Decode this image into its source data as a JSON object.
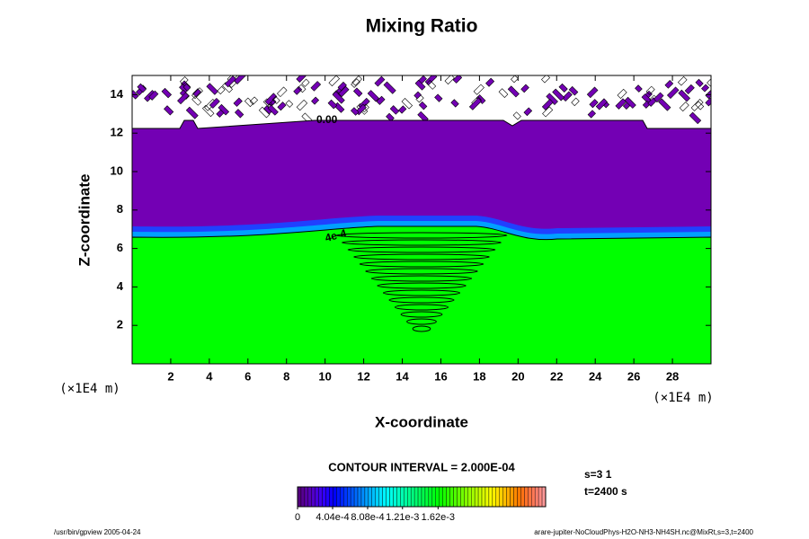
{
  "chart_data": {
    "type": "contour",
    "title": "Mixing Ratio",
    "xlabel": "X-coordinate",
    "ylabel": "Z-coordinate",
    "x_unit": "(×1E4 m)",
    "xlim": [
      0,
      30
    ],
    "ylim": [
      0,
      15
    ],
    "xticks": [
      2,
      4,
      6,
      8,
      10,
      12,
      14,
      16,
      18,
      20,
      22,
      24,
      26,
      28
    ],
    "yticks": [
      2,
      4,
      6,
      8,
      10,
      12,
      14
    ],
    "contour_labels": [
      "0.00",
      "4e-4"
    ],
    "contour_interval": "CONTOUR INTERVAL = 2.000E-04",
    "info": [
      "s=3 1",
      "t=2400 s"
    ],
    "footer_left": "/usr/bin/gpview 2005-04-24",
    "footer_right": "arare-jupiter-NoCloudPhys-H2O-NH3-NH4SH.nc@MixRt,s=3,t=2400",
    "clim": [
      0,
      0.00286
    ],
    "cticks": [
      0,
      {
        "value": 0.000404,
        "label": "4.04e-4"
      },
      {
        "value": 0.000808,
        "label": "8.08e-4"
      },
      {
        "value": 0.00121,
        "label": "1.21e-3"
      },
      {
        "value": 0.00162,
        "label": "1.62e-3"
      }
    ]
  }
}
